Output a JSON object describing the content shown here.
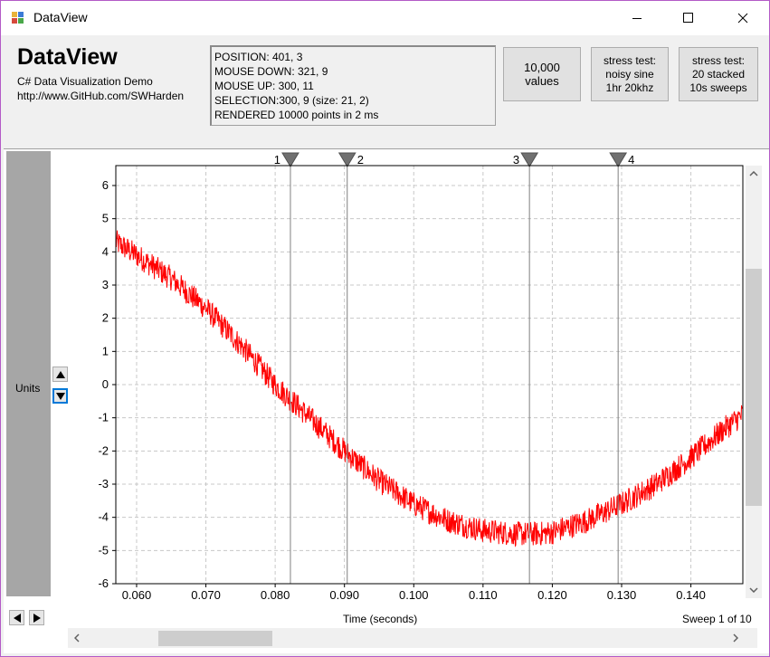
{
  "window": {
    "title": "DataView",
    "controls": {
      "minimize": "minimize-icon",
      "maximize": "maximize-icon",
      "close": "close-icon"
    }
  },
  "header": {
    "app_name": "DataView",
    "subtitle": "C# Data Visualization Demo",
    "url": "http://www.GitHub.com/SWHarden",
    "info": [
      "POSITION: 401, 3",
      "MOUSE DOWN: 321, 9",
      "MOUSE UP: 300, 11",
      "SELECTION:300, 9 (size: 21, 2)",
      "RENDERED 10000 points in 2 ms"
    ],
    "buttons": [
      {
        "line1": "10,000",
        "line2": "values",
        "line3": ""
      },
      {
        "line1": "stress test:",
        "line2": "noisy sine",
        "line3": "1hr 20khz"
      },
      {
        "line1": "stress test:",
        "line2": "20 stacked",
        "line3": "10s sweeps"
      }
    ]
  },
  "side": {
    "units_label": "Units",
    "up_icon": "triangle-up-icon",
    "down_icon": "triangle-down-icon"
  },
  "footer": {
    "xlabel": "Time (seconds)",
    "sweep_label": "Sweep 1 of 10",
    "left_icon": "triangle-left-icon",
    "right_icon": "triangle-right-icon"
  },
  "colors": {
    "trace": "#ff0000",
    "grid": "#c8c8c8",
    "cursor": "#808080",
    "units_bar": "#a6a6a6"
  },
  "chart_data": {
    "type": "line",
    "title": "",
    "xlabel": "Time (seconds)",
    "ylabel": "Units",
    "xlim": [
      0.057,
      0.1475
    ],
    "ylim": [
      -6,
      6.6
    ],
    "xticks": [
      "0.060",
      "0.070",
      "0.080",
      "0.090",
      "0.100",
      "0.110",
      "0.120",
      "0.130",
      "0.140"
    ],
    "xtick_values": [
      0.06,
      0.07,
      0.08,
      0.09,
      0.1,
      0.11,
      0.12,
      0.13,
      0.14
    ],
    "yticks": [
      "6",
      "5",
      "4",
      "3",
      "2",
      "1",
      "0",
      "-1",
      "-2",
      "-3",
      "-4",
      "-5",
      "-6"
    ],
    "ytick_values": [
      6,
      5,
      4,
      3,
      2,
      1,
      0,
      -1,
      -2,
      -3,
      -4,
      -5,
      -6
    ],
    "grid": true,
    "cursors": [
      {
        "label": "1",
        "x": 0.0822
      },
      {
        "label": "2",
        "x": 0.0904
      },
      {
        "label": "3",
        "x": 0.1167
      },
      {
        "label": "4",
        "x": 0.1295
      }
    ],
    "series": [
      {
        "x": [
          0.057,
          0.06,
          0.065,
          0.07,
          0.075,
          0.08,
          0.085,
          0.09,
          0.095,
          0.1,
          0.105,
          0.11,
          0.115,
          0.118,
          0.12,
          0.125,
          0.13,
          0.135,
          0.14,
          0.145,
          0.1475
        ],
        "y": [
          4.3,
          3.9,
          3.2,
          2.3,
          1.2,
          0.0,
          -1.0,
          -2.0,
          -2.9,
          -3.6,
          -4.1,
          -4.4,
          -4.5,
          -4.5,
          -4.45,
          -4.1,
          -3.6,
          -3.0,
          -2.2,
          -1.3,
          -0.9
        ]
      }
    ]
  }
}
